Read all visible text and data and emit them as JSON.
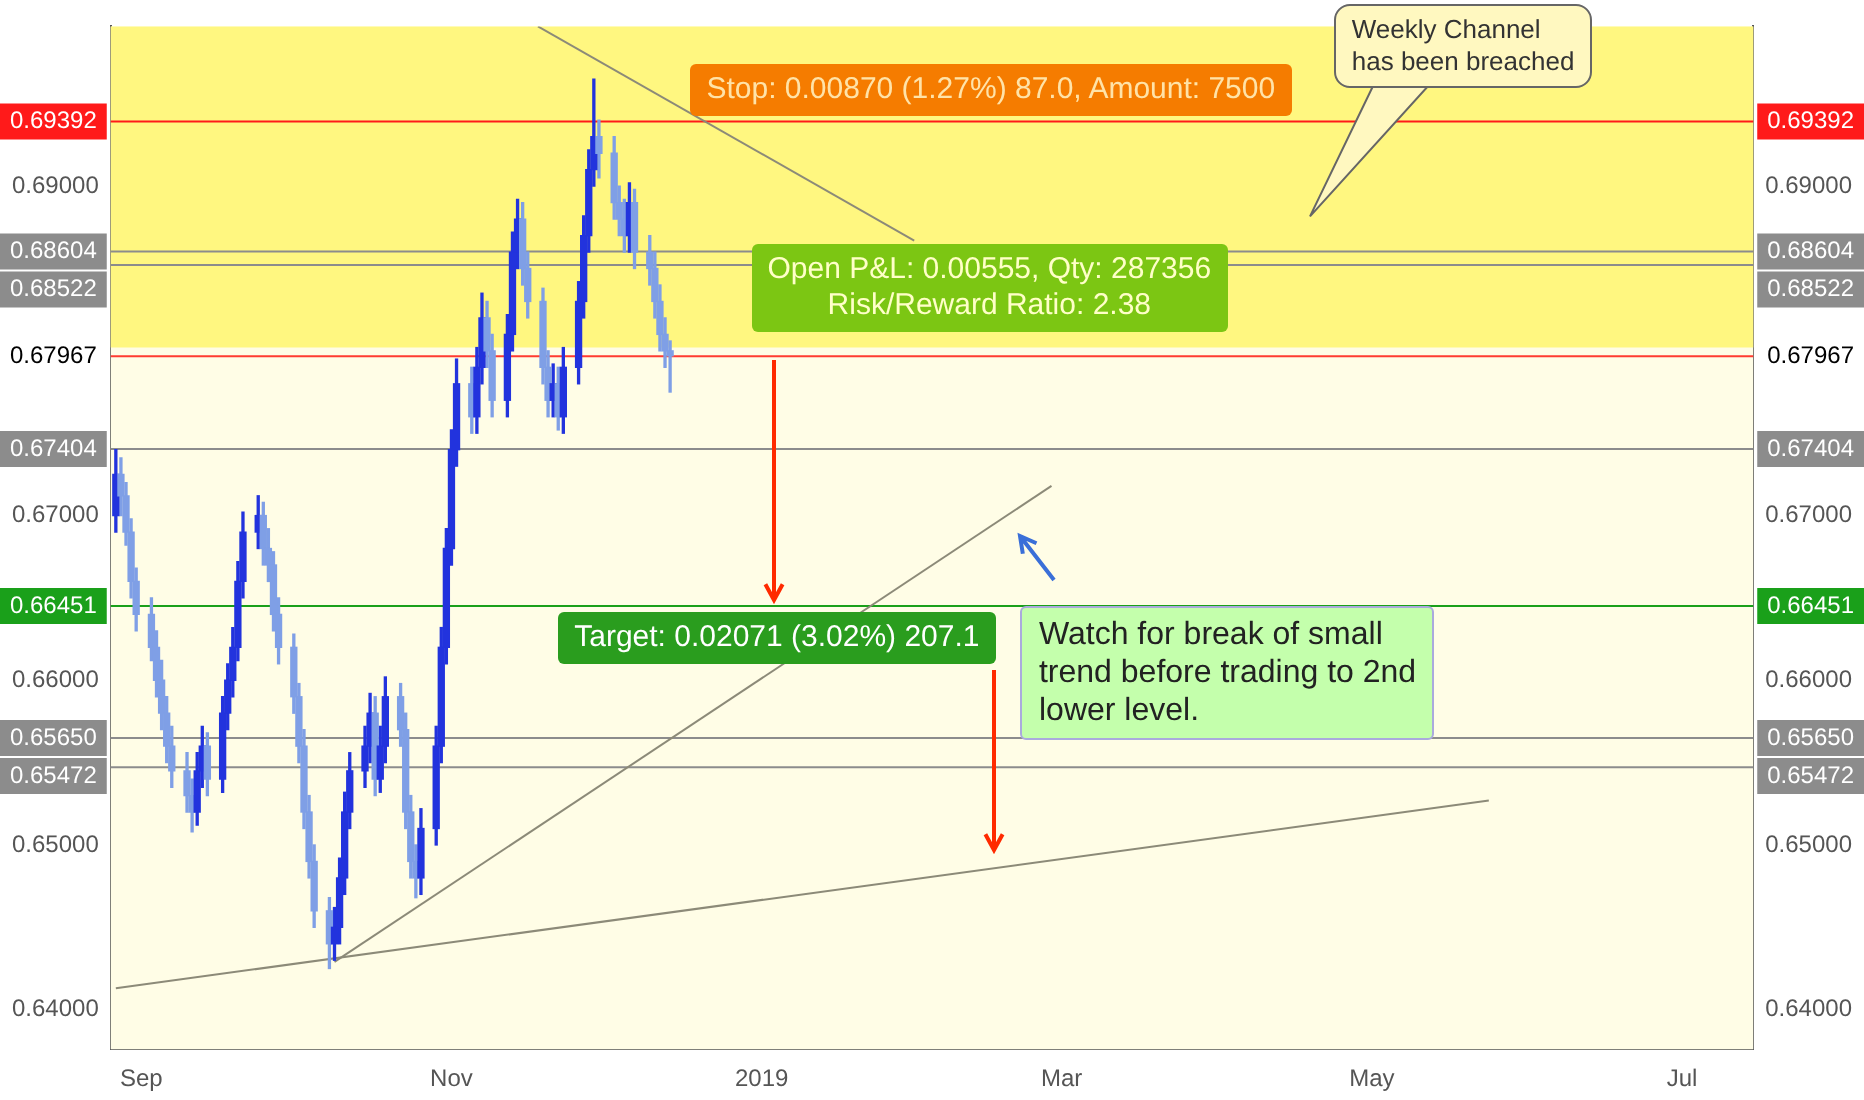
{
  "chart_data": {
    "type": "candlestick",
    "x": [
      "2018-08-27",
      "2018-08-28",
      "2018-08-29",
      "2018-08-30",
      "2018-08-31",
      "2018-09-03",
      "2018-09-04",
      "2018-09-05",
      "2018-09-06",
      "2018-09-07",
      "2018-09-10",
      "2018-09-11",
      "2018-09-12",
      "2018-09-13",
      "2018-09-14",
      "2018-09-17",
      "2018-09-18",
      "2018-09-19",
      "2018-09-20",
      "2018-09-21",
      "2018-09-24",
      "2018-09-25",
      "2018-09-26",
      "2018-09-27",
      "2018-09-28",
      "2018-10-01",
      "2018-10-02",
      "2018-10-03",
      "2018-10-04",
      "2018-10-05",
      "2018-10-08",
      "2018-10-09",
      "2018-10-10",
      "2018-10-11",
      "2018-10-12",
      "2018-10-15",
      "2018-10-16",
      "2018-10-17",
      "2018-10-18",
      "2018-10-19",
      "2018-10-22",
      "2018-10-23",
      "2018-10-24",
      "2018-10-25",
      "2018-10-26",
      "2018-10-29",
      "2018-10-30",
      "2018-10-31",
      "2018-11-01",
      "2018-11-02",
      "2018-11-05",
      "2018-11-06",
      "2018-11-07",
      "2018-11-08",
      "2018-11-09",
      "2018-11-12",
      "2018-11-13",
      "2018-11-14",
      "2018-11-15",
      "2018-11-16",
      "2018-11-19",
      "2018-11-20",
      "2018-11-21",
      "2018-11-22",
      "2018-11-23",
      "2018-11-26",
      "2018-11-27",
      "2018-11-28",
      "2018-11-29",
      "2018-11-30",
      "2018-12-03",
      "2018-12-04",
      "2018-12-05",
      "2018-12-06",
      "2018-12-07",
      "2018-12-10",
      "2018-12-11",
      "2018-12-12",
      "2018-12-13",
      "2018-12-14"
    ],
    "ohlc": [
      [
        0.67,
        0.674,
        0.669,
        0.6725
      ],
      [
        0.6725,
        0.6735,
        0.67,
        0.6712
      ],
      [
        0.6712,
        0.672,
        0.6682,
        0.669
      ],
      [
        0.669,
        0.6698,
        0.665,
        0.666
      ],
      [
        0.666,
        0.6668,
        0.663,
        0.664
      ],
      [
        0.664,
        0.665,
        0.6612,
        0.662
      ],
      [
        0.662,
        0.663,
        0.659,
        0.66
      ],
      [
        0.66,
        0.6612,
        0.657,
        0.658
      ],
      [
        0.658,
        0.659,
        0.655,
        0.656
      ],
      [
        0.656,
        0.6572,
        0.6535,
        0.6545
      ],
      [
        0.6545,
        0.6556,
        0.652,
        0.653
      ],
      [
        0.653,
        0.654,
        0.6508,
        0.652
      ],
      [
        0.652,
        0.6556,
        0.6512,
        0.6545
      ],
      [
        0.6545,
        0.6572,
        0.6535,
        0.656
      ],
      [
        0.656,
        0.6568,
        0.653,
        0.654
      ],
      [
        0.654,
        0.659,
        0.6532,
        0.658
      ],
      [
        0.658,
        0.661,
        0.657,
        0.66
      ],
      [
        0.66,
        0.6632,
        0.659,
        0.662
      ],
      [
        0.662,
        0.6672,
        0.6612,
        0.666
      ],
      [
        0.666,
        0.6702,
        0.665,
        0.669
      ],
      [
        0.669,
        0.6712,
        0.668,
        0.67
      ],
      [
        0.67,
        0.6708,
        0.667,
        0.668
      ],
      [
        0.668,
        0.6692,
        0.666,
        0.667
      ],
      [
        0.667,
        0.6678,
        0.663,
        0.664
      ],
      [
        0.664,
        0.665,
        0.661,
        0.662
      ],
      [
        0.662,
        0.6628,
        0.658,
        0.659
      ],
      [
        0.659,
        0.6598,
        0.655,
        0.656
      ],
      [
        0.656,
        0.657,
        0.651,
        0.652
      ],
      [
        0.652,
        0.653,
        0.648,
        0.649
      ],
      [
        0.649,
        0.65,
        0.645,
        0.646
      ],
      [
        0.646,
        0.6468,
        0.6425,
        0.644
      ],
      [
        0.644,
        0.6462,
        0.643,
        0.645
      ],
      [
        0.645,
        0.6492,
        0.644,
        0.648
      ],
      [
        0.648,
        0.6532,
        0.647,
        0.652
      ],
      [
        0.652,
        0.6556,
        0.651,
        0.6545
      ],
      [
        0.6545,
        0.6572,
        0.6535,
        0.656
      ],
      [
        0.656,
        0.6592,
        0.655,
        0.658
      ],
      [
        0.658,
        0.659,
        0.653,
        0.654
      ],
      [
        0.654,
        0.6572,
        0.6532,
        0.656
      ],
      [
        0.656,
        0.6602,
        0.655,
        0.659
      ],
      [
        0.659,
        0.6598,
        0.656,
        0.657
      ],
      [
        0.657,
        0.658,
        0.651,
        0.652
      ],
      [
        0.652,
        0.653,
        0.648,
        0.649
      ],
      [
        0.649,
        0.65,
        0.6468,
        0.648
      ],
      [
        0.648,
        0.6522,
        0.647,
        0.651
      ],
      [
        0.651,
        0.6572,
        0.65,
        0.656
      ],
      [
        0.656,
        0.6632,
        0.655,
        0.662
      ],
      [
        0.662,
        0.6692,
        0.661,
        0.668
      ],
      [
        0.668,
        0.6752,
        0.667,
        0.674
      ],
      [
        0.674,
        0.6795,
        0.673,
        0.678
      ],
      [
        0.678,
        0.679,
        0.675,
        0.676
      ],
      [
        0.676,
        0.6802,
        0.675,
        0.679
      ],
      [
        0.679,
        0.6835,
        0.678,
        0.682
      ],
      [
        0.682,
        0.683,
        0.679,
        0.68
      ],
      [
        0.68,
        0.681,
        0.676,
        0.677
      ],
      [
        0.677,
        0.6822,
        0.676,
        0.681
      ],
      [
        0.681,
        0.6872,
        0.68,
        0.686
      ],
      [
        0.686,
        0.6892,
        0.685,
        0.688
      ],
      [
        0.688,
        0.689,
        0.684,
        0.685
      ],
      [
        0.685,
        0.686,
        0.682,
        0.683
      ],
      [
        0.683,
        0.6838,
        0.678,
        0.679
      ],
      [
        0.679,
        0.68,
        0.676,
        0.677
      ],
      [
        0.677,
        0.6792,
        0.676,
        0.678
      ],
      [
        0.678,
        0.679,
        0.6752,
        0.676
      ],
      [
        0.676,
        0.6802,
        0.675,
        0.679
      ],
      [
        0.679,
        0.6842,
        0.678,
        0.683
      ],
      [
        0.683,
        0.6882,
        0.682,
        0.687
      ],
      [
        0.687,
        0.6922,
        0.686,
        0.691
      ],
      [
        0.691,
        0.6965,
        0.69,
        0.693
      ],
      [
        0.693,
        0.694,
        0.6905,
        0.692
      ],
      [
        0.692,
        0.693,
        0.688,
        0.689
      ],
      [
        0.689,
        0.69,
        0.687,
        0.688
      ],
      [
        0.688,
        0.6892,
        0.686,
        0.687
      ],
      [
        0.687,
        0.6902,
        0.686,
        0.689
      ],
      [
        0.689,
        0.6898,
        0.685,
        0.686
      ],
      [
        0.686,
        0.687,
        0.684,
        0.685
      ],
      [
        0.685,
        0.686,
        0.682,
        0.683
      ],
      [
        0.683,
        0.684,
        0.68,
        0.681
      ],
      [
        0.681,
        0.682,
        0.679,
        0.68
      ],
      [
        0.68,
        0.6806,
        0.6775,
        0.6797
      ]
    ],
    "series": [
      {
        "type": "line",
        "x": [
          "2018-08-27",
          "2019-05-24"
        ],
        "values": [
          0.6413,
          0.6527
        ],
        "color": "#8c8a78"
      },
      {
        "type": "line",
        "x": [
          "2018-10-09",
          "2019-02-27"
        ],
        "values": [
          0.6429,
          0.6718
        ],
        "color": "#8c8a78"
      },
      {
        "type": "line",
        "x": [
          "2018-11-18",
          "2019-01-31"
        ],
        "values": [
          0.6997,
          0.6867
        ],
        "color": "#8c8a78"
      }
    ],
    "xlim": [
      "2018-08-26",
      "2019-07-15"
    ],
    "xticks": [
      {
        "value": "2018-09-01",
        "label": "Sep"
      },
      {
        "value": "2018-11-01",
        "label": "Nov"
      },
      {
        "value": "2019-01-01",
        "label": "2019"
      },
      {
        "value": "2019-03-01",
        "label": "Mar"
      },
      {
        "value": "2019-05-01",
        "label": "May"
      },
      {
        "value": "2019-07-01",
        "label": "Jul"
      }
    ],
    "ylim": [
      0.6376,
      0.6997
    ],
    "yticks": [
      {
        "value": 0.64,
        "label": "0.64000"
      },
      {
        "value": 0.65,
        "label": "0.65000"
      },
      {
        "value": 0.66,
        "label": "0.66000"
      },
      {
        "value": 0.67,
        "label": "0.67000"
      },
      {
        "value": 0.69,
        "label": "0.69000"
      }
    ],
    "y2lim": [
      0.6376,
      0.6997
    ],
    "y2ticks": [
      {
        "value": 0.64,
        "label": "0.64000"
      },
      {
        "value": 0.65,
        "label": "0.65000"
      },
      {
        "value": 0.66,
        "label": "0.66000"
      },
      {
        "value": 0.67,
        "label": "0.67000"
      },
      {
        "value": 0.69,
        "label": "0.69000"
      }
    ],
    "bands": [
      {
        "axis": "y",
        "from": 0.6802,
        "to": 0.6997,
        "color": "#fff780"
      }
    ],
    "ref_lines": [
      {
        "axis": "y",
        "value": 0.69392,
        "label": "0.69392",
        "color": "#ff1a1a"
      },
      {
        "axis": "y",
        "value": 0.68604,
        "label": "0.68604",
        "color": "#8c8c8c"
      },
      {
        "axis": "y",
        "value": 0.68522,
        "label": "0.68522",
        "color": "#8c8c8c"
      },
      {
        "axis": "y",
        "value": 0.67967,
        "label": "0.67967",
        "color": "#ff3b30"
      },
      {
        "axis": "y",
        "value": 0.67404,
        "label": "0.67404",
        "color": "#8c8c8c"
      },
      {
        "axis": "y",
        "value": 0.66451,
        "label": "0.66451",
        "color": "#1aa01a"
      },
      {
        "axis": "y",
        "value": 0.6565,
        "label": "0.65650",
        "color": "#8c8c8c"
      },
      {
        "axis": "y",
        "value": 0.65472,
        "label": "0.65472",
        "color": "#8c8c8c"
      }
    ],
    "annotations": [
      {
        "text": "Stop: 0.00870 (1.27%) 87.0, Amount: 7500",
        "x": "2018-12-18",
        "y": 0.69392
      },
      {
        "text": "Open P&L: 0.00555, Qty: 287356\nRisk/Reward Ratio: 2.38",
        "x": "2018-12-30",
        "y": 0.68522
      },
      {
        "text": "Target: 0.02071 (3.02%) 207.1",
        "x": "2018-11-22",
        "y": 0.66451
      },
      "Weekly Channel\nhas been breached",
      {
        "text": "Watch for break of small\ntrend before trading to 2nd\nlower level.",
        "x": "2019-02-21",
        "y": 0.6645
      }
    ]
  }
}
